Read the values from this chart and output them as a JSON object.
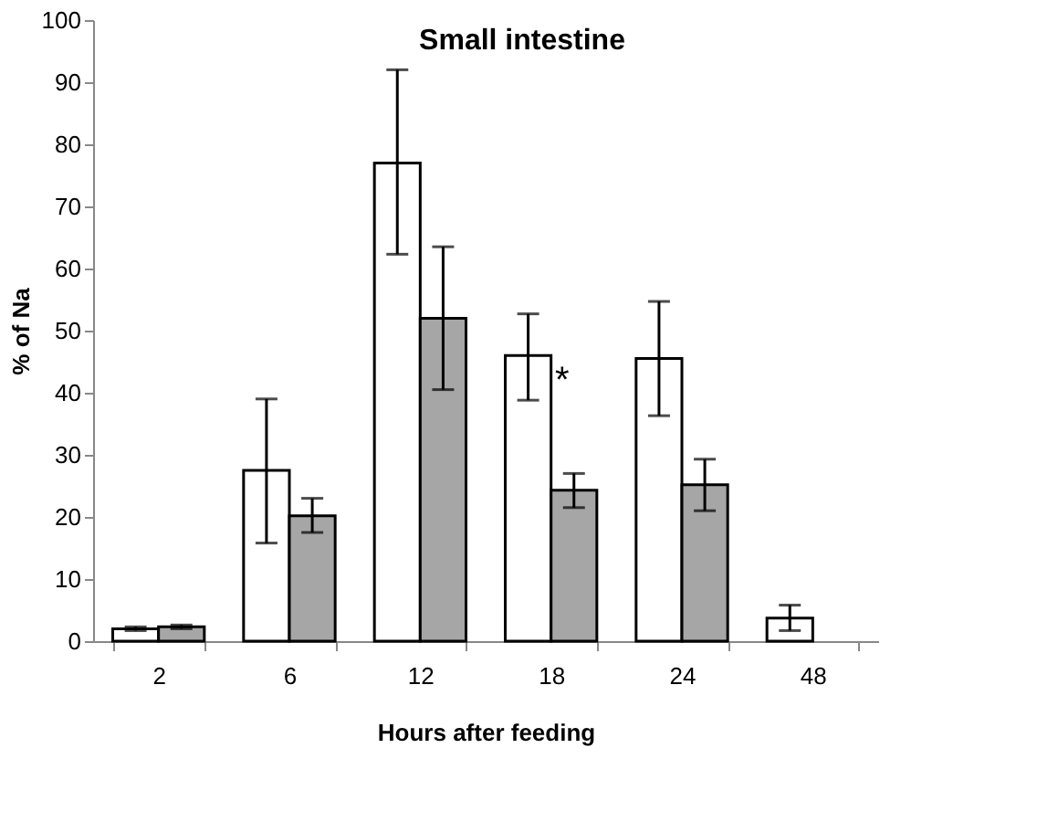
{
  "chart_data": {
    "type": "bar",
    "title": "Small intestine",
    "xlabel": "Hours after feeding",
    "ylabel": "% of Na",
    "categories": [
      "2",
      "6",
      "12",
      "18",
      "24",
      "48"
    ],
    "series": [
      {
        "color": "#ffffff",
        "values": [
          2.0,
          27.5,
          77,
          46,
          45.5,
          3.7
        ],
        "errors": [
          [
            1.7,
            2.3
          ],
          [
            15.8,
            39
          ],
          [
            62.3,
            92
          ],
          [
            38.8,
            52.7
          ],
          [
            36.3,
            54.7
          ],
          [
            1.7,
            5.8
          ]
        ]
      },
      {
        "color": "#a6a6a6",
        "values": [
          2.3,
          20.2,
          52,
          24.3,
          25.2,
          null
        ],
        "errors": [
          [
            2.0,
            2.6
          ],
          [
            17.5,
            23
          ],
          [
            40.5,
            63.5
          ],
          [
            21.5,
            27
          ],
          [
            21,
            29.3
          ],
          null
        ]
      }
    ],
    "ylim": [
      0,
      100
    ],
    "yticks": [
      0,
      10,
      20,
      30,
      40,
      50,
      60,
      70,
      80,
      90,
      100
    ],
    "grid": false,
    "annotations": [
      {
        "text": "*",
        "x": "18",
        "y": 46
      }
    ]
  }
}
